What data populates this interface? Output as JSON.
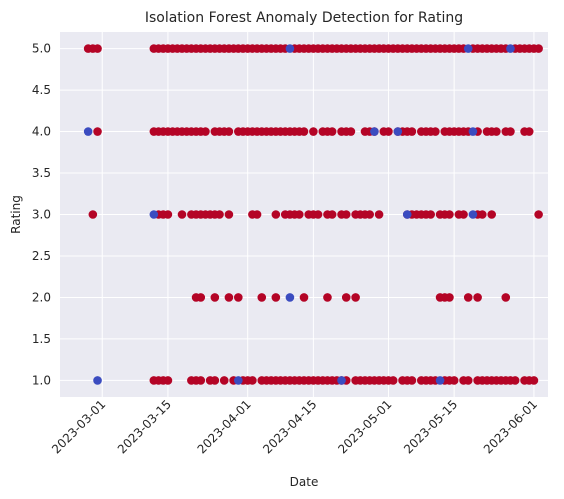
{
  "chart_data": {
    "type": "scatter",
    "title": "Isolation Forest Anomaly Detection for Rating",
    "xlabel": "Date",
    "ylabel": "Rating",
    "xlim": [
      "2023-02-20",
      "2023-06-04"
    ],
    "ylim": [
      0.8,
      5.2
    ],
    "grid": true,
    "x_ticks": [
      "2023-03-01",
      "2023-03-15",
      "2023-04-01",
      "2023-04-15",
      "2023-05-01",
      "2023-05-15",
      "2023-06-01"
    ],
    "y_ticks": [
      "1.0",
      "1.5",
      "2.0",
      "2.5",
      "3.0",
      "3.5",
      "4.0",
      "4.5",
      "5.0"
    ],
    "colors": {
      "normal": "#b40426",
      "anomaly": "#3b4cc0",
      "plot_bg": "#eaeaf2",
      "grid": "#ffffff"
    },
    "series": [
      {
        "role": "normal",
        "points": [
          [
            "2023-02-26",
            5
          ],
          [
            "2023-02-27",
            5
          ],
          [
            "2023-02-28",
            5
          ],
          [
            "2023-02-28",
            4
          ],
          [
            "2023-02-27",
            3
          ],
          [
            "2023-03-12",
            5
          ],
          [
            "2023-03-13",
            5
          ],
          [
            "2023-03-14",
            5
          ],
          [
            "2023-03-15",
            5
          ],
          [
            "2023-03-16",
            5
          ],
          [
            "2023-03-17",
            5
          ],
          [
            "2023-03-18",
            5
          ],
          [
            "2023-03-19",
            5
          ],
          [
            "2023-03-20",
            5
          ],
          [
            "2023-03-21",
            5
          ],
          [
            "2023-03-22",
            5
          ],
          [
            "2023-03-23",
            5
          ],
          [
            "2023-03-24",
            5
          ],
          [
            "2023-03-25",
            5
          ],
          [
            "2023-03-26",
            5
          ],
          [
            "2023-03-27",
            5
          ],
          [
            "2023-03-28",
            5
          ],
          [
            "2023-03-29",
            5
          ],
          [
            "2023-03-30",
            5
          ],
          [
            "2023-03-31",
            5
          ],
          [
            "2023-04-01",
            5
          ],
          [
            "2023-04-02",
            5
          ],
          [
            "2023-04-03",
            5
          ],
          [
            "2023-04-04",
            5
          ],
          [
            "2023-04-05",
            5
          ],
          [
            "2023-04-06",
            5
          ],
          [
            "2023-04-07",
            5
          ],
          [
            "2023-04-08",
            5
          ],
          [
            "2023-04-09",
            5
          ],
          [
            "2023-04-11",
            5
          ],
          [
            "2023-04-12",
            5
          ],
          [
            "2023-04-13",
            5
          ],
          [
            "2023-04-14",
            5
          ],
          [
            "2023-04-15",
            5
          ],
          [
            "2023-04-16",
            5
          ],
          [
            "2023-04-17",
            5
          ],
          [
            "2023-04-18",
            5
          ],
          [
            "2023-04-19",
            5
          ],
          [
            "2023-04-20",
            5
          ],
          [
            "2023-04-21",
            5
          ],
          [
            "2023-04-22",
            5
          ],
          [
            "2023-04-23",
            5
          ],
          [
            "2023-04-24",
            5
          ],
          [
            "2023-04-25",
            5
          ],
          [
            "2023-04-26",
            5
          ],
          [
            "2023-04-27",
            5
          ],
          [
            "2023-04-28",
            5
          ],
          [
            "2023-04-29",
            5
          ],
          [
            "2023-04-30",
            5
          ],
          [
            "2023-05-01",
            5
          ],
          [
            "2023-05-02",
            5
          ],
          [
            "2023-05-03",
            5
          ],
          [
            "2023-05-04",
            5
          ],
          [
            "2023-05-05",
            5
          ],
          [
            "2023-05-06",
            5
          ],
          [
            "2023-05-07",
            5
          ],
          [
            "2023-05-08",
            5
          ],
          [
            "2023-05-09",
            5
          ],
          [
            "2023-05-10",
            5
          ],
          [
            "2023-05-11",
            5
          ],
          [
            "2023-05-12",
            5
          ],
          [
            "2023-05-13",
            5
          ],
          [
            "2023-05-14",
            5
          ],
          [
            "2023-05-15",
            5
          ],
          [
            "2023-05-16",
            5
          ],
          [
            "2023-05-17",
            5
          ],
          [
            "2023-05-19",
            5
          ],
          [
            "2023-05-20",
            5
          ],
          [
            "2023-05-21",
            5
          ],
          [
            "2023-05-22",
            5
          ],
          [
            "2023-05-23",
            5
          ],
          [
            "2023-05-24",
            5
          ],
          [
            "2023-05-25",
            5
          ],
          [
            "2023-05-26",
            5
          ],
          [
            "2023-05-28",
            5
          ],
          [
            "2023-05-29",
            5
          ],
          [
            "2023-05-30",
            5
          ],
          [
            "2023-05-31",
            5
          ],
          [
            "2023-06-01",
            5
          ],
          [
            "2023-06-02",
            5
          ],
          [
            "2023-03-12",
            4
          ],
          [
            "2023-03-13",
            4
          ],
          [
            "2023-03-14",
            4
          ],
          [
            "2023-03-15",
            4
          ],
          [
            "2023-03-16",
            4
          ],
          [
            "2023-03-17",
            4
          ],
          [
            "2023-03-18",
            4
          ],
          [
            "2023-03-19",
            4
          ],
          [
            "2023-03-20",
            4
          ],
          [
            "2023-03-21",
            4
          ],
          [
            "2023-03-22",
            4
          ],
          [
            "2023-03-23",
            4
          ],
          [
            "2023-03-25",
            4
          ],
          [
            "2023-03-26",
            4
          ],
          [
            "2023-03-27",
            4
          ],
          [
            "2023-03-28",
            4
          ],
          [
            "2023-03-30",
            4
          ],
          [
            "2023-03-31",
            4
          ],
          [
            "2023-04-01",
            4
          ],
          [
            "2023-04-02",
            4
          ],
          [
            "2023-04-03",
            4
          ],
          [
            "2023-04-04",
            4
          ],
          [
            "2023-04-05",
            4
          ],
          [
            "2023-04-06",
            4
          ],
          [
            "2023-04-07",
            4
          ],
          [
            "2023-04-08",
            4
          ],
          [
            "2023-04-09",
            4
          ],
          [
            "2023-04-10",
            4
          ],
          [
            "2023-04-11",
            4
          ],
          [
            "2023-04-12",
            4
          ],
          [
            "2023-04-13",
            4
          ],
          [
            "2023-04-15",
            4
          ],
          [
            "2023-04-17",
            4
          ],
          [
            "2023-04-18",
            4
          ],
          [
            "2023-04-19",
            4
          ],
          [
            "2023-04-21",
            4
          ],
          [
            "2023-04-22",
            4
          ],
          [
            "2023-04-23",
            4
          ],
          [
            "2023-04-26",
            4
          ],
          [
            "2023-04-27",
            4
          ],
          [
            "2023-04-28",
            4
          ],
          [
            "2023-04-30",
            4
          ],
          [
            "2023-05-01",
            4
          ],
          [
            "2023-05-03",
            4
          ],
          [
            "2023-05-04",
            4
          ],
          [
            "2023-05-05",
            4
          ],
          [
            "2023-05-06",
            4
          ],
          [
            "2023-05-08",
            4
          ],
          [
            "2023-05-09",
            4
          ],
          [
            "2023-05-10",
            4
          ],
          [
            "2023-05-11",
            4
          ],
          [
            "2023-05-13",
            4
          ],
          [
            "2023-05-14",
            4
          ],
          [
            "2023-05-15",
            4
          ],
          [
            "2023-05-16",
            4
          ],
          [
            "2023-05-17",
            4
          ],
          [
            "2023-05-18",
            4
          ],
          [
            "2023-05-20",
            4
          ],
          [
            "2023-05-22",
            4
          ],
          [
            "2023-05-23",
            4
          ],
          [
            "2023-05-24",
            4
          ],
          [
            "2023-05-26",
            4
          ],
          [
            "2023-05-27",
            4
          ],
          [
            "2023-05-30",
            4
          ],
          [
            "2023-05-31",
            4
          ],
          [
            "2023-03-13",
            3
          ],
          [
            "2023-03-14",
            3
          ],
          [
            "2023-03-15",
            3
          ],
          [
            "2023-03-18",
            3
          ],
          [
            "2023-03-20",
            3
          ],
          [
            "2023-03-21",
            3
          ],
          [
            "2023-03-22",
            3
          ],
          [
            "2023-03-23",
            3
          ],
          [
            "2023-03-24",
            3
          ],
          [
            "2023-03-25",
            3
          ],
          [
            "2023-03-26",
            3
          ],
          [
            "2023-03-28",
            3
          ],
          [
            "2023-04-02",
            3
          ],
          [
            "2023-04-03",
            3
          ],
          [
            "2023-04-07",
            3
          ],
          [
            "2023-04-09",
            3
          ],
          [
            "2023-04-10",
            3
          ],
          [
            "2023-04-11",
            3
          ],
          [
            "2023-04-12",
            3
          ],
          [
            "2023-04-14",
            3
          ],
          [
            "2023-04-15",
            3
          ],
          [
            "2023-04-16",
            3
          ],
          [
            "2023-04-18",
            3
          ],
          [
            "2023-04-19",
            3
          ],
          [
            "2023-04-21",
            3
          ],
          [
            "2023-04-22",
            3
          ],
          [
            "2023-04-24",
            3
          ],
          [
            "2023-04-25",
            3
          ],
          [
            "2023-04-26",
            3
          ],
          [
            "2023-04-27",
            3
          ],
          [
            "2023-04-29",
            3
          ],
          [
            "2023-05-05",
            3
          ],
          [
            "2023-05-06",
            3
          ],
          [
            "2023-05-07",
            3
          ],
          [
            "2023-05-08",
            3
          ],
          [
            "2023-05-09",
            3
          ],
          [
            "2023-05-10",
            3
          ],
          [
            "2023-05-12",
            3
          ],
          [
            "2023-05-13",
            3
          ],
          [
            "2023-05-14",
            3
          ],
          [
            "2023-05-16",
            3
          ],
          [
            "2023-05-17",
            3
          ],
          [
            "2023-05-20",
            3
          ],
          [
            "2023-05-21",
            3
          ],
          [
            "2023-05-23",
            3
          ],
          [
            "2023-06-02",
            3
          ],
          [
            "2023-03-21",
            2
          ],
          [
            "2023-03-22",
            2
          ],
          [
            "2023-03-25",
            2
          ],
          [
            "2023-03-28",
            2
          ],
          [
            "2023-03-30",
            2
          ],
          [
            "2023-04-04",
            2
          ],
          [
            "2023-04-07",
            2
          ],
          [
            "2023-04-13",
            2
          ],
          [
            "2023-04-18",
            2
          ],
          [
            "2023-04-22",
            2
          ],
          [
            "2023-04-24",
            2
          ],
          [
            "2023-05-12",
            2
          ],
          [
            "2023-05-13",
            2
          ],
          [
            "2023-05-14",
            2
          ],
          [
            "2023-05-18",
            2
          ],
          [
            "2023-05-20",
            2
          ],
          [
            "2023-05-26",
            2
          ],
          [
            "2023-03-12",
            1
          ],
          [
            "2023-03-13",
            1
          ],
          [
            "2023-03-14",
            1
          ],
          [
            "2023-03-15",
            1
          ],
          [
            "2023-03-20",
            1
          ],
          [
            "2023-03-21",
            1
          ],
          [
            "2023-03-22",
            1
          ],
          [
            "2023-03-24",
            1
          ],
          [
            "2023-03-25",
            1
          ],
          [
            "2023-03-27",
            1
          ],
          [
            "2023-03-29",
            1
          ],
          [
            "2023-03-31",
            1
          ],
          [
            "2023-04-01",
            1
          ],
          [
            "2023-04-02",
            1
          ],
          [
            "2023-04-04",
            1
          ],
          [
            "2023-04-05",
            1
          ],
          [
            "2023-04-06",
            1
          ],
          [
            "2023-04-07",
            1
          ],
          [
            "2023-04-08",
            1
          ],
          [
            "2023-04-09",
            1
          ],
          [
            "2023-04-10",
            1
          ],
          [
            "2023-04-11",
            1
          ],
          [
            "2023-04-12",
            1
          ],
          [
            "2023-04-13",
            1
          ],
          [
            "2023-04-14",
            1
          ],
          [
            "2023-04-15",
            1
          ],
          [
            "2023-04-16",
            1
          ],
          [
            "2023-04-17",
            1
          ],
          [
            "2023-04-18",
            1
          ],
          [
            "2023-04-19",
            1
          ],
          [
            "2023-04-20",
            1
          ],
          [
            "2023-04-21",
            1
          ],
          [
            "2023-04-22",
            1
          ],
          [
            "2023-04-24",
            1
          ],
          [
            "2023-04-25",
            1
          ],
          [
            "2023-04-26",
            1
          ],
          [
            "2023-04-27",
            1
          ],
          [
            "2023-04-28",
            1
          ],
          [
            "2023-04-29",
            1
          ],
          [
            "2023-04-30",
            1
          ],
          [
            "2023-05-01",
            1
          ],
          [
            "2023-05-02",
            1
          ],
          [
            "2023-05-04",
            1
          ],
          [
            "2023-05-05",
            1
          ],
          [
            "2023-05-06",
            1
          ],
          [
            "2023-05-08",
            1
          ],
          [
            "2023-05-09",
            1
          ],
          [
            "2023-05-10",
            1
          ],
          [
            "2023-05-11",
            1
          ],
          [
            "2023-05-13",
            1
          ],
          [
            "2023-05-14",
            1
          ],
          [
            "2023-05-15",
            1
          ],
          [
            "2023-05-17",
            1
          ],
          [
            "2023-05-18",
            1
          ],
          [
            "2023-05-20",
            1
          ],
          [
            "2023-05-21",
            1
          ],
          [
            "2023-05-22",
            1
          ],
          [
            "2023-05-23",
            1
          ],
          [
            "2023-05-24",
            1
          ],
          [
            "2023-05-25",
            1
          ],
          [
            "2023-05-26",
            1
          ],
          [
            "2023-05-27",
            1
          ],
          [
            "2023-05-28",
            1
          ],
          [
            "2023-05-30",
            1
          ],
          [
            "2023-05-31",
            1
          ],
          [
            "2023-06-01",
            1
          ]
        ]
      },
      {
        "role": "anomaly",
        "points": [
          [
            "2023-02-26",
            4
          ],
          [
            "2023-02-28",
            1
          ],
          [
            "2023-03-12",
            3
          ],
          [
            "2023-03-30",
            1
          ],
          [
            "2023-04-10",
            2
          ],
          [
            "2023-04-10",
            5
          ],
          [
            "2023-04-21",
            1
          ],
          [
            "2023-04-28",
            4
          ],
          [
            "2023-05-03",
            4
          ],
          [
            "2023-05-05",
            3
          ],
          [
            "2023-05-12",
            1
          ],
          [
            "2023-05-18",
            5
          ],
          [
            "2023-05-19",
            4
          ],
          [
            "2023-05-19",
            3
          ],
          [
            "2023-05-27",
            5
          ]
        ]
      }
    ]
  }
}
